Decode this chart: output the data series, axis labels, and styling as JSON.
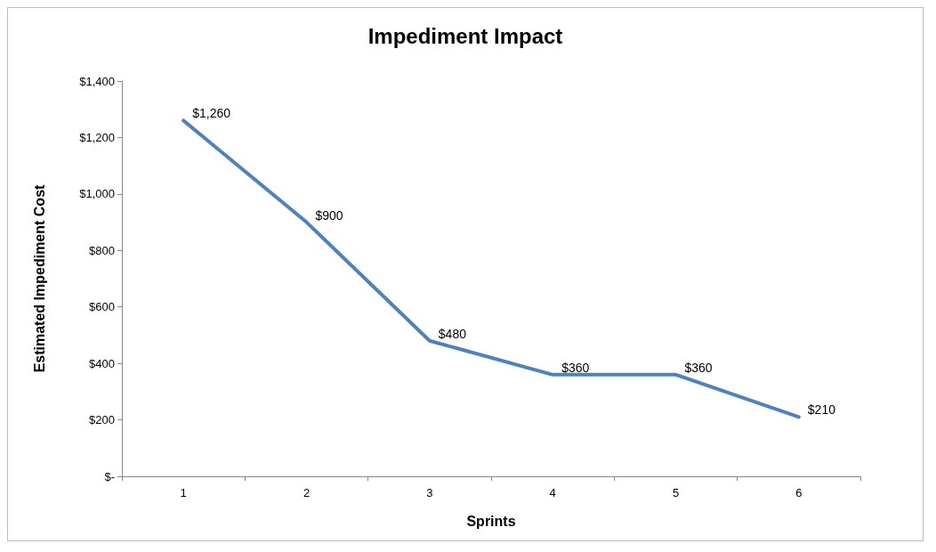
{
  "chart_data": {
    "type": "line",
    "title": "Impediment Impact",
    "xlabel": "Sprints",
    "ylabel": "Estimated Impediment Cost",
    "categories": [
      "1",
      "2",
      "3",
      "4",
      "5",
      "6"
    ],
    "series": [
      {
        "color": "#4f81bd",
        "values": [
          1260,
          900,
          480,
          360,
          360,
          210
        ],
        "value_labels": [
          "$1,260",
          "$900",
          "$480",
          "$360",
          "$360",
          "$210"
        ]
      }
    ],
    "ylim": [
      0,
      1400
    ],
    "yticks": [
      {
        "value": 0,
        "label": "$-"
      },
      {
        "value": 200,
        "label": "$200"
      },
      {
        "value": 400,
        "label": "$400"
      },
      {
        "value": 600,
        "label": "$600"
      },
      {
        "value": 800,
        "label": "$800"
      },
      {
        "value": 1000,
        "label": "$1,000"
      },
      {
        "value": 1200,
        "label": "$1,200"
      },
      {
        "value": 1400,
        "label": "$1,400"
      }
    ],
    "grid": false,
    "marker": "none",
    "line_style": "solid"
  }
}
